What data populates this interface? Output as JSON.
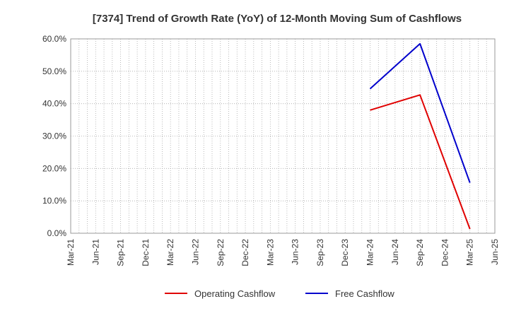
{
  "chart_data": {
    "type": "line",
    "title": "[7374]  Trend of Growth Rate (YoY) of 12-Month Moving Sum of Cashflows",
    "xlabel": "",
    "ylabel": "",
    "ylim": [
      0,
      60
    ],
    "y_ticks": [
      "0.0%",
      "10.0%",
      "20.0%",
      "30.0%",
      "40.0%",
      "50.0%",
      "60.0%"
    ],
    "x_ticks": [
      "Mar-21",
      "Jun-21",
      "Sep-21",
      "Dec-21",
      "Mar-22",
      "Jun-22",
      "Sep-22",
      "Dec-22",
      "Mar-23",
      "Jun-23",
      "Sep-23",
      "Dec-23",
      "Mar-24",
      "Jun-24",
      "Sep-24",
      "Dec-24",
      "Mar-25",
      "Jun-25"
    ],
    "grid": true,
    "legend_position": "bottom",
    "series": [
      {
        "name": "Operating Cashflow",
        "color": "#e00000",
        "x": [
          "Mar-24",
          "Sep-24",
          "Mar-25"
        ],
        "values": [
          38.0,
          42.7,
          1.3
        ]
      },
      {
        "name": "Free Cashflow",
        "color": "#0000cc",
        "x": [
          "Mar-24",
          "Sep-24",
          "Mar-25"
        ],
        "values": [
          44.6,
          58.5,
          15.6
        ]
      }
    ]
  }
}
